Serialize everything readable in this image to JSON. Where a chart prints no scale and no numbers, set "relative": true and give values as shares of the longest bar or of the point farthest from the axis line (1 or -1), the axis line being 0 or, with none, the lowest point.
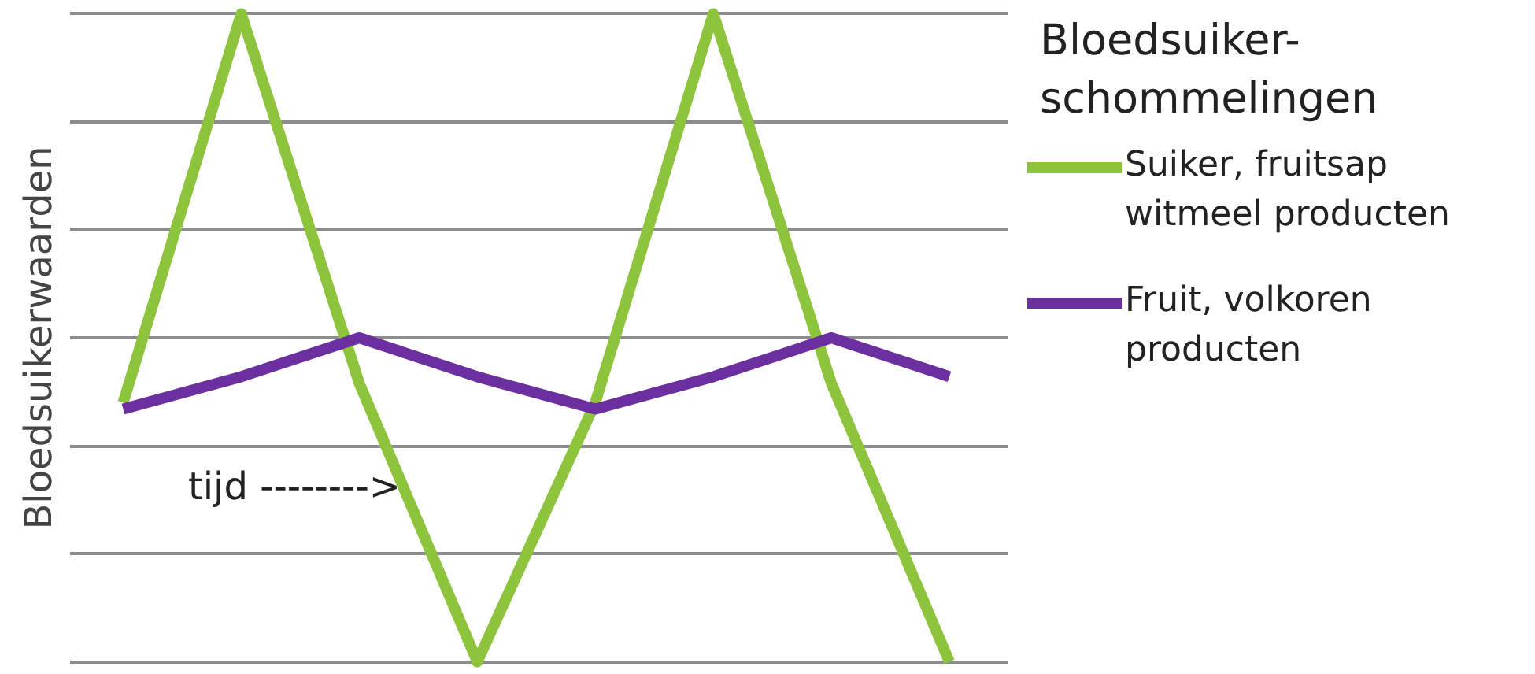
{
  "chart_data": {
    "type": "line",
    "relative": true,
    "ylabel": "Bloedsuikerwaarden",
    "legend_title": "Bloedsuiker-schommelingen",
    "annotations": [
      "tijd -------->"
    ],
    "grid": "y",
    "legend": "right",
    "categories": [
      null,
      null,
      null,
      null,
      null,
      null,
      null,
      null
    ],
    "series": [
      {
        "name": "Suiker, fruitsap witmeel producten",
        "color": "#8cc43c",
        "values": [
          0.4,
          1,
          0.43,
          0,
          0.4,
          1,
          0.43,
          0
        ]
      },
      {
        "name": "Fruit, volkoren producten",
        "color": "#6b2fa0",
        "values": [
          0.39,
          0.44,
          0.5,
          0.44,
          0.39,
          0.44,
          0.5,
          0.44
        ]
      }
    ]
  }
}
